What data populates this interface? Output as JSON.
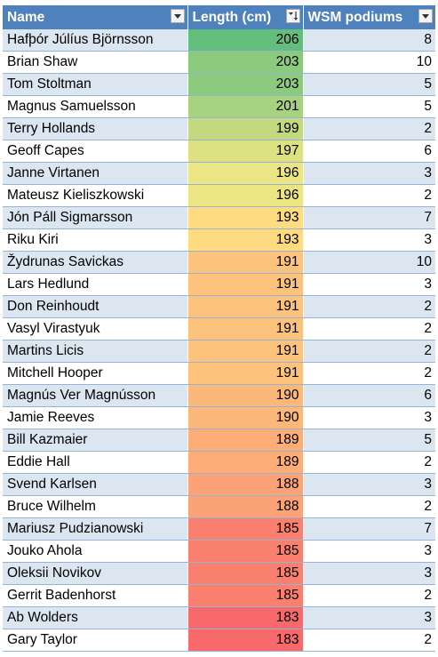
{
  "table": {
    "headers": {
      "name": "Name",
      "length": "Length (cm)",
      "podiums": "WSM podiums"
    },
    "rows": [
      {
        "name": "Hafþór Júlíus Björnsson",
        "length": 206,
        "podiums": 8
      },
      {
        "name": "Brian Shaw",
        "length": 203,
        "podiums": 10
      },
      {
        "name": "Tom Stoltman",
        "length": 203,
        "podiums": 5
      },
      {
        "name": "Magnus Samuelsson",
        "length": 201,
        "podiums": 5
      },
      {
        "name": "Terry Hollands",
        "length": 199,
        "podiums": 2
      },
      {
        "name": "Geoff Capes",
        "length": 197,
        "podiums": 6
      },
      {
        "name": "Janne Virtanen",
        "length": 196,
        "podiums": 3
      },
      {
        "name": "Mateusz Kieliszkowski",
        "length": 196,
        "podiums": 2
      },
      {
        "name": "Jón Páll Sigmarsson",
        "length": 193,
        "podiums": 7
      },
      {
        "name": "Riku Kiri",
        "length": 193,
        "podiums": 3
      },
      {
        "name": "Žydrunas Savickas",
        "length": 191,
        "podiums": 10
      },
      {
        "name": "Lars Hedlund",
        "length": 191,
        "podiums": 3
      },
      {
        "name": "Don Reinhoudt",
        "length": 191,
        "podiums": 2
      },
      {
        "name": "Vasyl Virastyuk",
        "length": 191,
        "podiums": 2
      },
      {
        "name": "Martins Licis",
        "length": 191,
        "podiums": 2
      },
      {
        "name": "Mitchell Hooper",
        "length": 191,
        "podiums": 2
      },
      {
        "name": "Magnús Ver Magnússon",
        "length": 190,
        "podiums": 6
      },
      {
        "name": "Jamie Reeves",
        "length": 190,
        "podiums": 3
      },
      {
        "name": "Bill Kazmaier",
        "length": 189,
        "podiums": 5
      },
      {
        "name": "Eddie Hall",
        "length": 189,
        "podiums": 2
      },
      {
        "name": "Svend Karlsen",
        "length": 188,
        "podiums": 3
      },
      {
        "name": "Bruce Wilhelm",
        "length": 188,
        "podiums": 2
      },
      {
        "name": "Mariusz Pudzianowski",
        "length": 185,
        "podiums": 7
      },
      {
        "name": "Jouko Ahola",
        "length": 185,
        "podiums": 3
      },
      {
        "name": "Oleksii Novikov",
        "length": 185,
        "podiums": 3
      },
      {
        "name": "Gerrit Badenhorst",
        "length": 185,
        "podiums": 2
      },
      {
        "name": "Ab Wolders",
        "length": 183,
        "podiums": 3
      },
      {
        "name": "Gary Taylor",
        "length": 183,
        "podiums": 2
      }
    ]
  },
  "filters": {
    "name": "dropdown-arrow-icon",
    "length": "sort-descending-filter-icon",
    "podiums": "dropdown-arrow-icon"
  },
  "style": {
    "header_bg": "#4f81bd",
    "band_bg": "#dce6f1",
    "scale_high": "#63be7b",
    "scale_mid": "#ffeb84",
    "scale_low": "#f8696b"
  }
}
